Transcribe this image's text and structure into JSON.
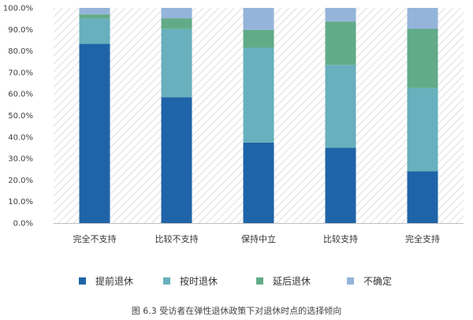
{
  "chart_data": {
    "type": "bar",
    "stacked": true,
    "caption": "图 6.3 受访者在弹性退休政策下对退休时点的选择倾向",
    "categories": [
      "完全不支持",
      "比较不支持",
      "保持中立",
      "比较支持",
      "完全支持"
    ],
    "y_ticks": [
      "0.0%",
      "10.0%",
      "20.0%",
      "30.0%",
      "40.0%",
      "50.0%",
      "60.0%",
      "70.0%",
      "80.0%",
      "90.0%",
      "100.0%"
    ],
    "ylim": [
      0,
      100
    ],
    "unit": "%",
    "grid": false,
    "background_pattern": "diagonal-hatch",
    "legend_position": "bottom",
    "series": [
      {
        "name": "提前退休",
        "color": "#1f64a8",
        "values": [
          83.3,
          58.5,
          37.4,
          35.0,
          24.0
        ]
      },
      {
        "name": "按时退休",
        "color": "#68b0bd",
        "values": [
          11.7,
          31.7,
          44.1,
          38.5,
          38.8
        ]
      },
      {
        "name": "延后退休",
        "color": "#62ab88",
        "values": [
          2.0,
          5.0,
          8.3,
          20.2,
          27.5
        ]
      },
      {
        "name": "不确定",
        "color": "#94b4da",
        "values": [
          3.0,
          4.8,
          10.2,
          6.3,
          9.7
        ]
      }
    ]
  }
}
